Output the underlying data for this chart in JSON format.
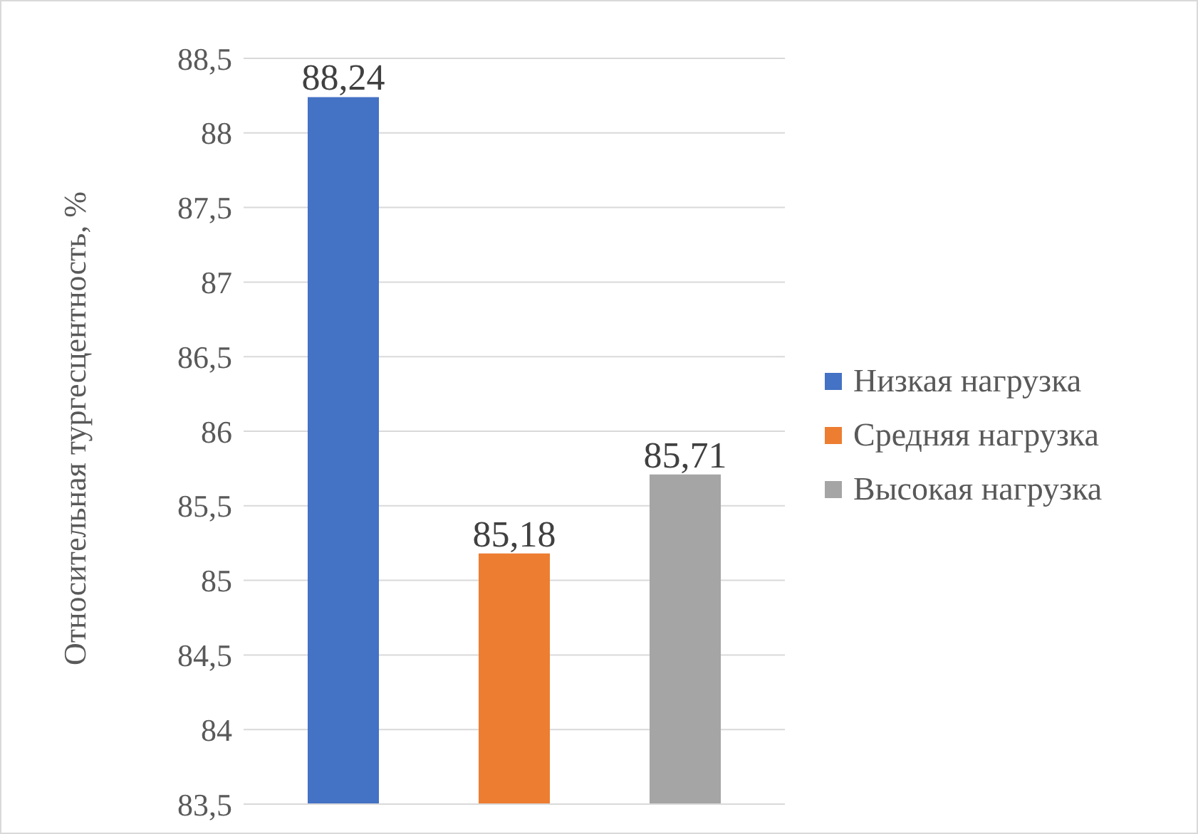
{
  "chart_data": {
    "type": "bar",
    "ylabel": "Относительная тургесцентность, %",
    "categories": [
      null
    ],
    "series": [
      {
        "name": "Низкая нагрузка",
        "color": "#4472c4",
        "values": [
          88.24
        ],
        "value_labels": [
          "88,24"
        ]
      },
      {
        "name": "Средняя нагрузка",
        "color": "#ed7d31",
        "values": [
          85.18
        ],
        "value_labels": [
          "85,18"
        ]
      },
      {
        "name": "Высокая нагрузка",
        "color": "#a5a5a5",
        "values": [
          85.71
        ],
        "value_labels": [
          "85,71"
        ]
      }
    ],
    "ylim": [
      83.5,
      88.5
    ],
    "yticks": [
      {
        "value": 83.5,
        "label": "83,5"
      },
      84,
      {
        "value": 84.5,
        "label": "84,5"
      },
      85,
      {
        "value": 85.5,
        "label": "85,5"
      },
      86,
      {
        "value": 86.5,
        "label": "86,5"
      },
      87,
      {
        "value": 87.5,
        "label": "87,5"
      },
      88,
      {
        "value": 88.5,
        "label": "88,5"
      }
    ],
    "grid": "y",
    "legend": "right"
  }
}
